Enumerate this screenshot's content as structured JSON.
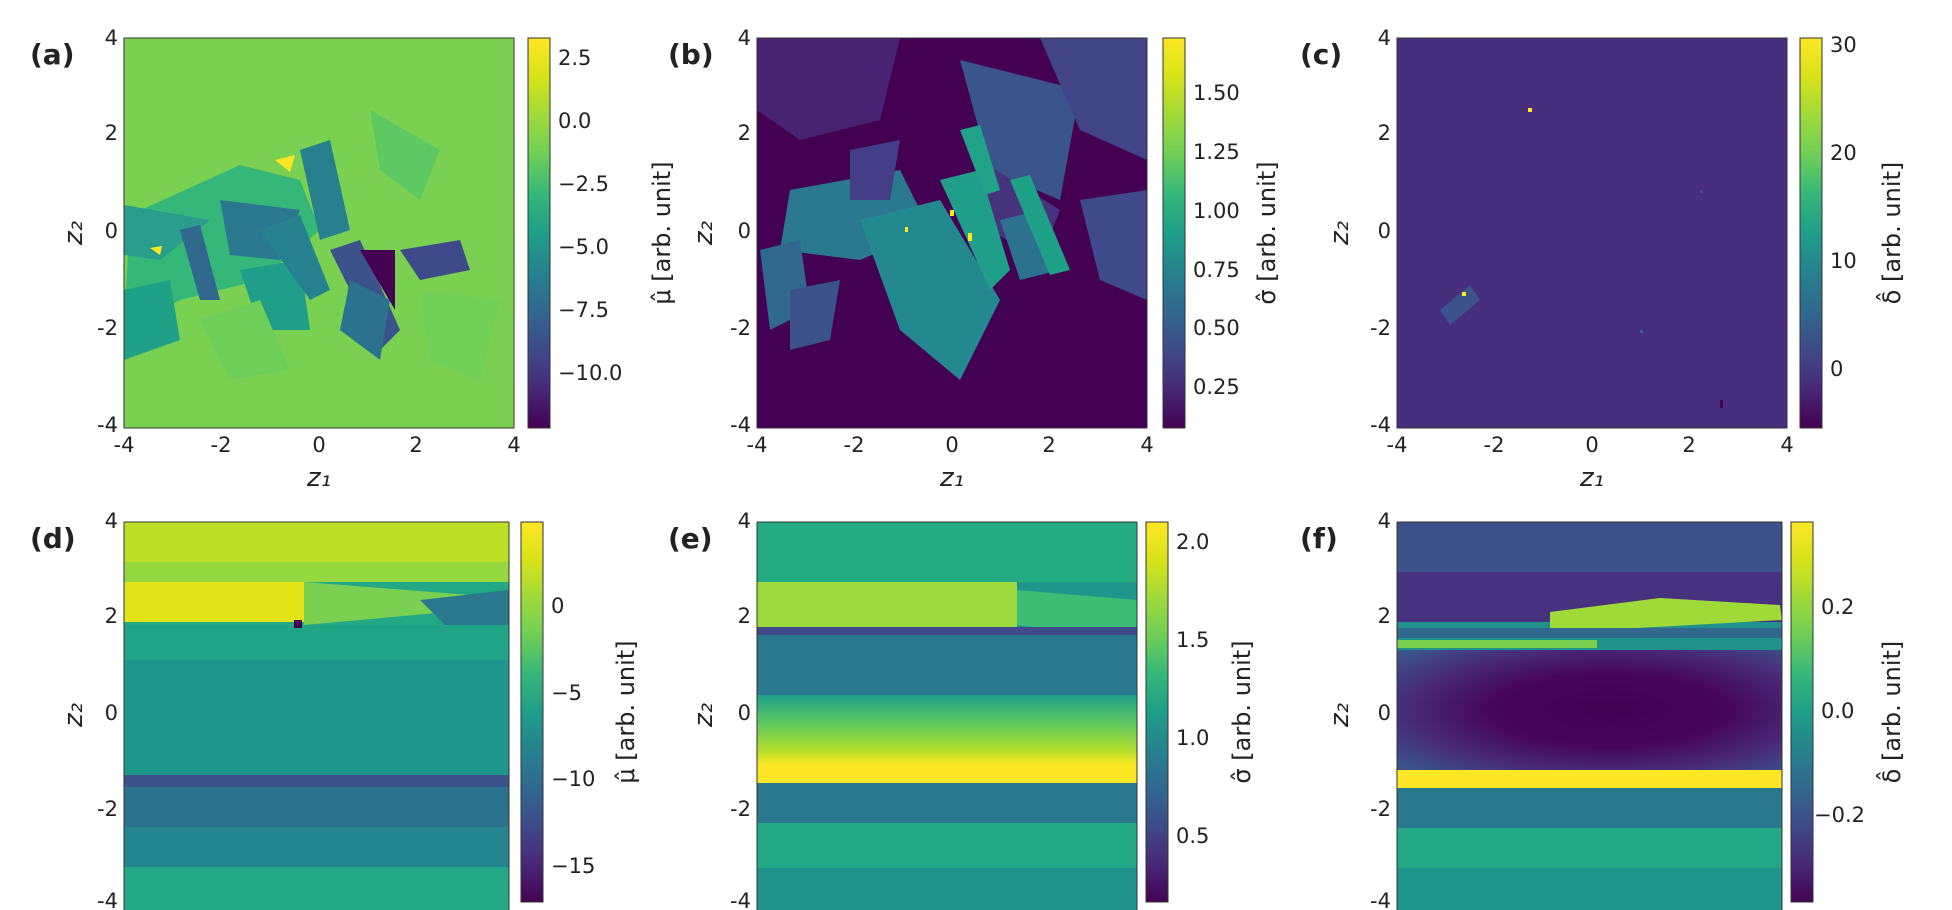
{
  "figure": {
    "type": "multi-panel heatmap figure"
  },
  "chart_data": [
    {
      "type": "heatmap",
      "panel": "(a)",
      "xlabel": "z₁",
      "ylabel": "z₂",
      "xlim": [
        -4,
        4
      ],
      "ylim": [
        -4,
        4
      ],
      "x_ticks": [
        "-4",
        "-2",
        "0",
        "2",
        "4"
      ],
      "y_ticks": [
        "-4",
        "-2",
        "0",
        "2",
        "4"
      ],
      "colormap": "viridis",
      "colorbar": {
        "label": "μ̂ [arb. unit]",
        "range": [
          -12,
          3.5
        ],
        "ticks": [
          "2.5",
          "0.0",
          "−2.5",
          "−5.0",
          "−7.5",
          "−10.0"
        ]
      }
    },
    {
      "type": "heatmap",
      "panel": "(b)",
      "xlabel": "z₁",
      "ylabel": "z₂",
      "xlim": [
        -4,
        4
      ],
      "ylim": [
        -4,
        4
      ],
      "x_ticks": [
        "-4",
        "-2",
        "0",
        "2",
        "4"
      ],
      "y_ticks": [
        "-4",
        "-2",
        "0",
        "2",
        "4"
      ],
      "colormap": "viridis",
      "colorbar": {
        "label": "σ̂ [arb. unit]",
        "range": [
          0.05,
          1.72
        ],
        "ticks": [
          "1.50",
          "1.25",
          "1.00",
          "0.75",
          "0.50",
          "0.25"
        ]
      }
    },
    {
      "type": "heatmap",
      "panel": "(c)",
      "xlabel": "z₁",
      "ylabel": "z₂",
      "xlim": [
        -4,
        4
      ],
      "ylim": [
        -4,
        4
      ],
      "x_ticks": [
        "-4",
        "-2",
        "0",
        "2",
        "4"
      ],
      "y_ticks": [
        "-4",
        "-2",
        "0",
        "2",
        "4"
      ],
      "colormap": "viridis",
      "colorbar": {
        "label": "δ̂ [arb. unit]",
        "range": [
          -5,
          31
        ],
        "ticks": [
          "30",
          "20",
          "10",
          "0"
        ]
      }
    },
    {
      "type": "heatmap",
      "panel": "(d)",
      "xlabel": "",
      "ylabel": "z₂",
      "xlim": [
        -4,
        4
      ],
      "ylim": [
        -4,
        4
      ],
      "x_ticks": [],
      "y_ticks": [
        "-4",
        "-2",
        "0",
        "2",
        "4"
      ],
      "colormap": "viridis",
      "colorbar": {
        "label": "μ̂ [arb. unit]",
        "range": [
          -18,
          4
        ],
        "ticks": [
          "0",
          "−5",
          "−10",
          "−15"
        ]
      }
    },
    {
      "type": "heatmap",
      "panel": "(e)",
      "xlabel": "",
      "ylabel": "z₂",
      "xlim": [
        -4,
        4
      ],
      "ylim": [
        -4,
        4
      ],
      "x_ticks": [],
      "y_ticks": [
        "-4",
        "-2",
        "0",
        "2",
        "4"
      ],
      "colormap": "viridis",
      "colorbar": {
        "label": "σ̂ [arb. unit]",
        "range": [
          0.1,
          2.1
        ],
        "ticks": [
          "2.0",
          "1.5",
          "1.0",
          "0.5"
        ]
      }
    },
    {
      "type": "heatmap",
      "panel": "(f)",
      "xlabel": "",
      "ylabel": "z₂",
      "xlim": [
        -4,
        4
      ],
      "ylim": [
        -4,
        4
      ],
      "x_ticks": [],
      "y_ticks": [
        "-4",
        "-2",
        "0",
        "2",
        "4"
      ],
      "colormap": "viridis",
      "colorbar": {
        "label": "δ̂ [arb. unit]",
        "range": [
          -0.35,
          0.38
        ],
        "ticks": [
          "0.2",
          "0.0",
          "−0.2"
        ]
      }
    }
  ]
}
